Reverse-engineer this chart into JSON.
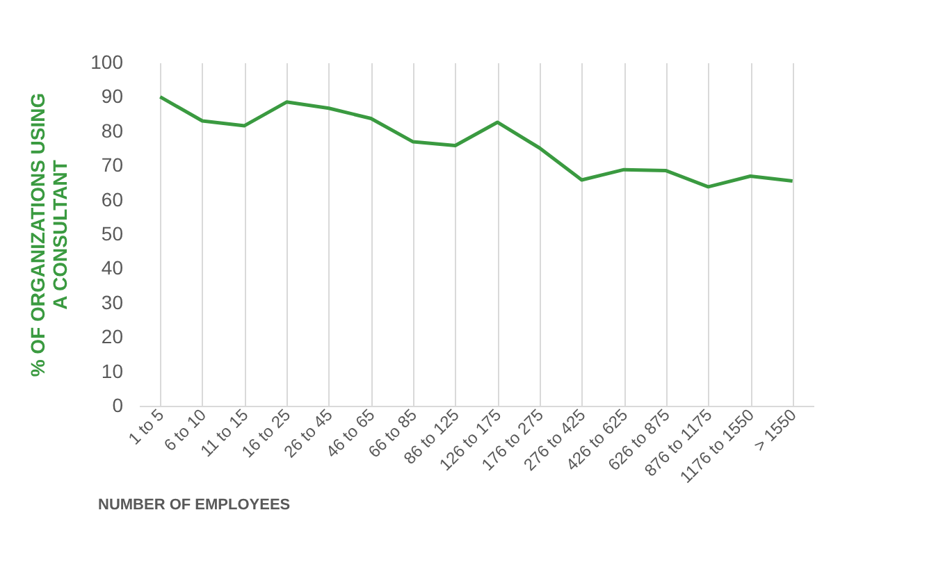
{
  "chart_data": {
    "type": "line",
    "xlabel": "NUMBER OF EMPLOYEES",
    "ylabel": "% OF ORGANIZATIONS USING A CONSULTANT",
    "categories": [
      "1 to 5",
      "6 to 10",
      "11 to 15",
      "16 to 25",
      "26 to 45",
      "46 to 65",
      "66 to 85",
      "86 to 125",
      "126 to 175",
      "176 to 275",
      "276 to 425",
      "426 to 625",
      "626 to 875",
      "876 to 1175",
      "1176 to 1550",
      "> 1550"
    ],
    "series": [
      {
        "color": "#3a9a40",
        "values": [
          90,
          83,
          81.6,
          88.5,
          86.7,
          83.7,
          76.9,
          75.8,
          82.6,
          75.1,
          65.8,
          68.8,
          68.5,
          63.8,
          66.9,
          65.5
        ]
      }
    ],
    "ylim": [
      0,
      100
    ],
    "yticks": [
      0,
      10,
      20,
      30,
      40,
      50,
      60,
      70,
      80,
      90,
      100
    ],
    "grid": "x",
    "legend": false,
    "marker": "none"
  }
}
